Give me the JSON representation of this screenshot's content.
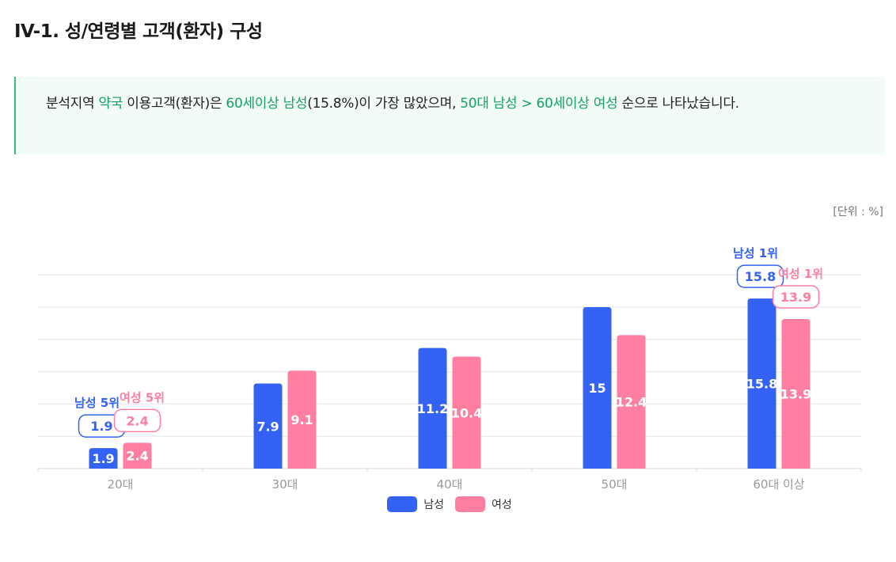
{
  "page": {
    "title": "IV-1. 성/연령별 고객(환자) 구성",
    "unit": "[단위 : %]"
  },
  "summary": {
    "parts": [
      {
        "text": "분석지역 ",
        "highlight": false
      },
      {
        "text": "약국",
        "highlight": true
      },
      {
        "text": " 이용고객(환자)은 ",
        "highlight": false
      },
      {
        "text": "60세이상 남성",
        "highlight": true
      },
      {
        "text": "(15.8%)이 가장 많았으며, ",
        "highlight": false
      },
      {
        "text": "50대 남성 > 60세이상 여성",
        "highlight": true
      },
      {
        "text": " 순으로 나타났습니다.",
        "highlight": false
      }
    ]
  },
  "legend": {
    "male": "남성",
    "female": "여성"
  },
  "colors": {
    "male": "#3462f5",
    "female": "#ff7fa0",
    "highlight_text": "#14a06a",
    "grid": "#e6e6f2"
  },
  "chart_data": {
    "type": "bar",
    "categories": [
      "20대",
      "30대",
      "40대",
      "50대",
      "60대 이상"
    ],
    "series": [
      {
        "name": "남성",
        "values": [
          1.9,
          7.9,
          11.2,
          15,
          15.8
        ]
      },
      {
        "name": "여성",
        "values": [
          2.4,
          9.1,
          10.4,
          12.4,
          13.9
        ]
      }
    ],
    "ylim": [
      0,
      18
    ],
    "grid": true,
    "legend_position": "bottom",
    "annotations": [
      {
        "series": "남성",
        "category": "60대 이상",
        "label": "남성 1위",
        "value": "15.8"
      },
      {
        "series": "여성",
        "category": "60대 이상",
        "label": "여성 1위",
        "value": "13.9"
      },
      {
        "series": "남성",
        "category": "20대",
        "label": "남성 5위",
        "value": "1.9"
      },
      {
        "series": "여성",
        "category": "20대",
        "label": "여성 5위",
        "value": "2.4"
      }
    ]
  }
}
